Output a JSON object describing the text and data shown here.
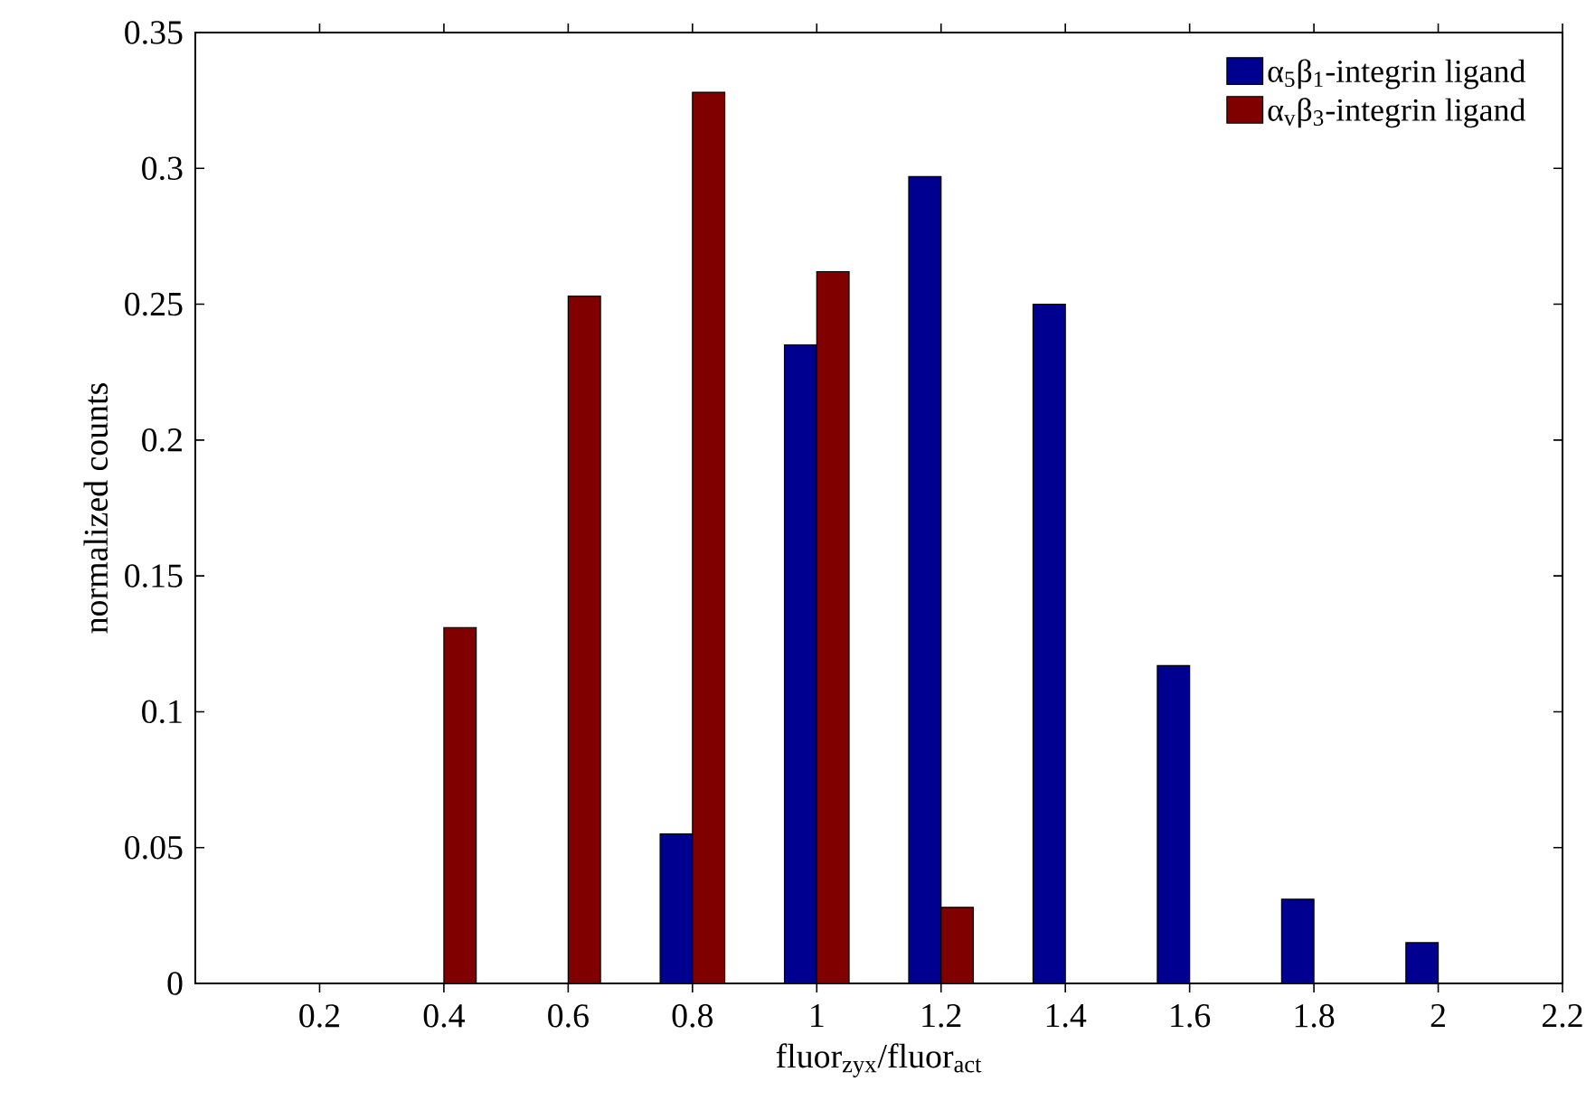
{
  "chart_data": {
    "type": "bar",
    "xlabel": "fluor$_{zyx}$/fluor$_{act}$",
    "ylabel": "normalized counts",
    "x": [
      0.2,
      0.4,
      0.6,
      0.8,
      1.0,
      1.2,
      1.4,
      1.6,
      1.8,
      2.0
    ],
    "series": [
      {
        "name": "α$_{5}$β$_{1}$-integrin ligand",
        "color": "#000090",
        "values": [
          0,
          0,
          0,
          0.055,
          0.235,
          0.297,
          0.25,
          0.117,
          0.031,
          0.015
        ]
      },
      {
        "name": "α$_{v}$β$_{3}$-integrin ligand",
        "color": "#800000",
        "values": [
          0,
          0.131,
          0.253,
          0.328,
          0.262,
          0.028,
          0,
          0,
          0,
          0
        ]
      }
    ],
    "xlim": [
      0,
      2.2
    ],
    "ylim": [
      0,
      0.35
    ],
    "xticks": [
      0.2,
      0.4,
      0.6,
      0.8,
      1,
      1.2,
      1.4,
      1.6,
      1.8,
      2,
      2.2
    ],
    "yticks": [
      0,
      0.05,
      0.1,
      0.15,
      0.2,
      0.25,
      0.3,
      0.35
    ],
    "legend": "top right"
  }
}
